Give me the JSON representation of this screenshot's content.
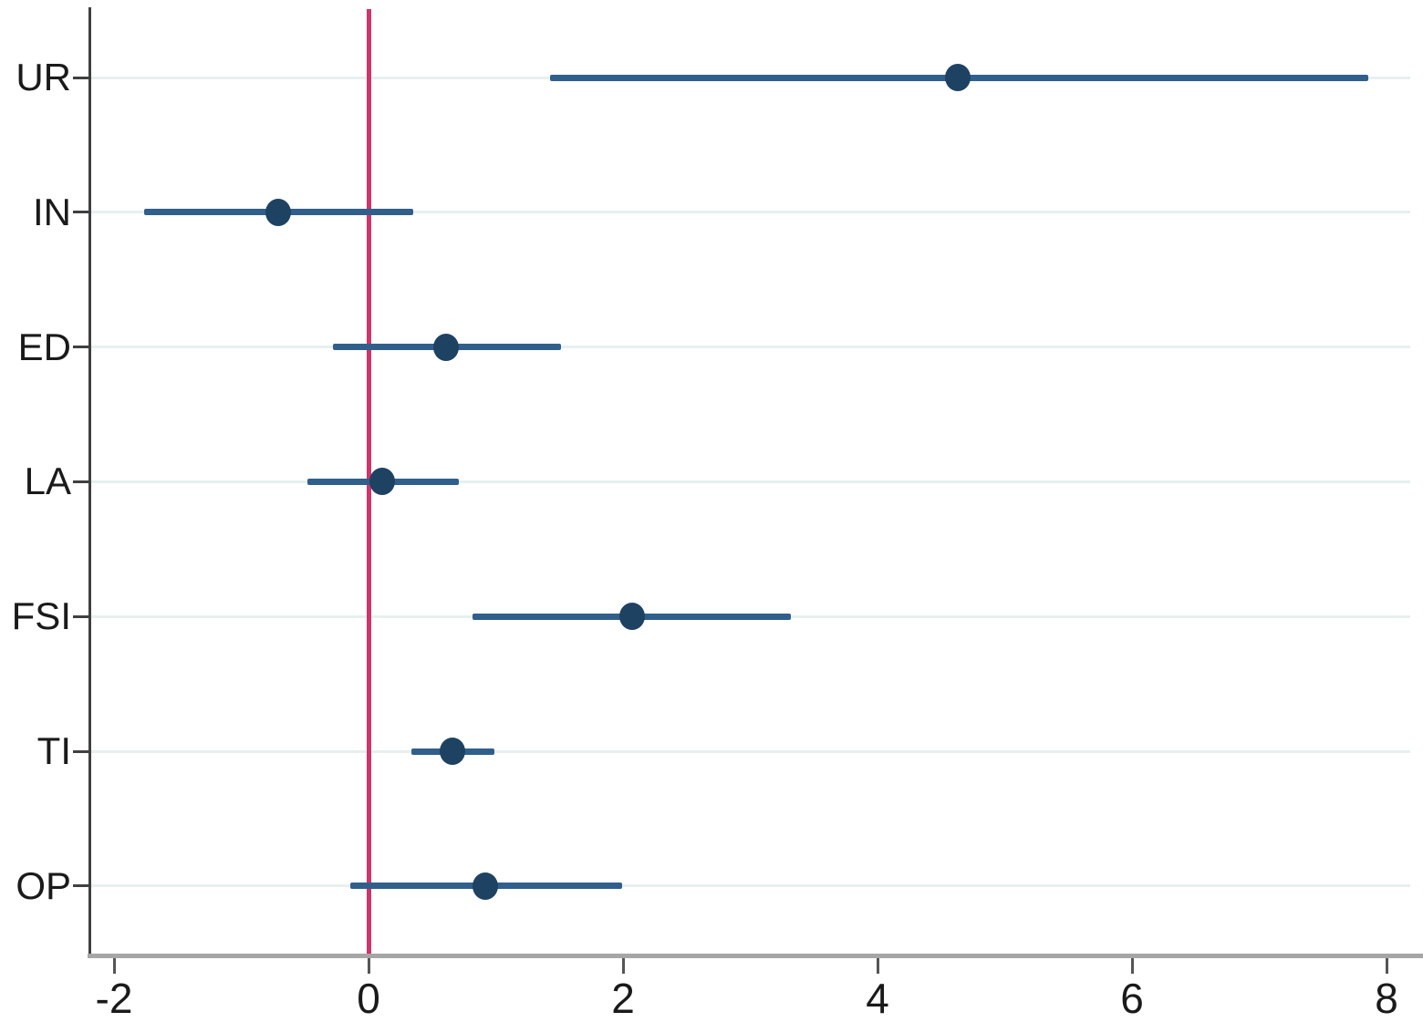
{
  "chart_data": {
    "type": "scatter",
    "variant": "coefficient_forest_plot",
    "title": "",
    "xlabel": "",
    "ylabel": "",
    "legend_position": "none",
    "grid": "horizontal-only",
    "categories": [
      "UR",
      "IN",
      "ED",
      "LA",
      "FSI",
      "TI",
      "OP"
    ],
    "series": [
      {
        "name": "coefficient-estimates",
        "estimates": [
          4.63,
          -0.71,
          0.61,
          0.11,
          2.07,
          0.66,
          0.92
        ],
        "ci_low": [
          1.43,
          -1.76,
          -0.28,
          -0.48,
          0.82,
          0.34,
          -0.14
        ],
        "ci_high": [
          7.86,
          0.35,
          1.51,
          0.71,
          3.32,
          0.99,
          1.99
        ]
      }
    ],
    "x_ticks": [
      "-2",
      "0",
      "2",
      "4",
      "6",
      "8"
    ],
    "x_tick_values": [
      -2,
      0,
      2,
      4,
      6,
      8
    ],
    "xlim": [
      -2.2,
      8.2
    ],
    "reference_line_x": 0
  },
  "colors": {
    "marker": "#1e4262",
    "ci_line": "#315f8c",
    "reference_line": "#cd356b",
    "gridline": "#e6f0ef",
    "left_axis": "#404040",
    "bottom_axis": "#a6a6a6",
    "tick_mark": "#555555",
    "tick_text": "#1a1a1a",
    "background": "#ffffff"
  }
}
